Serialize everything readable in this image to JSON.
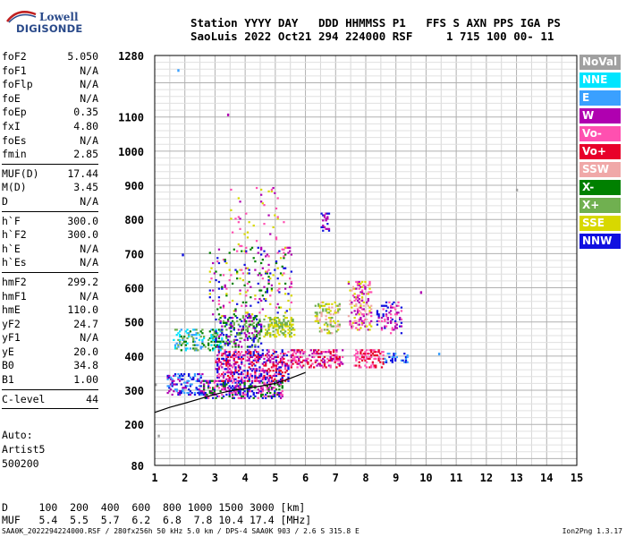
{
  "logo": {
    "line1": "Lowell",
    "line2": "DIGISONDE"
  },
  "header": {
    "labels": [
      "Station",
      "YYYY",
      "DAY",
      "DDD",
      "HHMMSS",
      "P1",
      "FFS",
      "S",
      "AXN",
      "PPS",
      "IGA",
      "PS"
    ],
    "line1": "Station YYYY DAY   DDD HHMMSS P1   FFS S AXN PPS IGA PS",
    "line2": "SaoLuis 2022 Oct21 294 224000 RSF     1 715 100 00- 11"
  },
  "params": [
    [
      {
        "name": "foF2",
        "value": "5.050"
      },
      {
        "name": "foF1",
        "value": "N/A"
      },
      {
        "name": "foFlp",
        "value": "N/A"
      },
      {
        "name": "foE",
        "value": "N/A"
      },
      {
        "name": "foEp",
        "value": "0.35"
      },
      {
        "name": "fxI",
        "value": "4.80"
      },
      {
        "name": "foEs",
        "value": "N/A"
      },
      {
        "name": "fmin",
        "value": "2.85"
      }
    ],
    [
      {
        "name": "MUF(D)",
        "value": "17.44"
      },
      {
        "name": "M(D)",
        "value": "3.45"
      },
      {
        "name": "D",
        "value": "N/A"
      }
    ],
    [
      {
        "name": "h`F",
        "value": "300.0"
      },
      {
        "name": "h`F2",
        "value": "300.0"
      },
      {
        "name": "h`E",
        "value": "N/A"
      },
      {
        "name": "h`Es",
        "value": "N/A"
      }
    ],
    [
      {
        "name": "hmF2",
        "value": "299.2"
      },
      {
        "name": "hmF1",
        "value": "N/A"
      },
      {
        "name": "hmE",
        "value": "110.0"
      },
      {
        "name": "yF2",
        "value": "24.7"
      },
      {
        "name": "yF1",
        "value": "N/A"
      },
      {
        "name": "yE",
        "value": "20.0"
      },
      {
        "name": "B0",
        "value": "34.8"
      },
      {
        "name": "B1",
        "value": "1.00"
      }
    ],
    [
      {
        "name": "C-level",
        "value": "44"
      }
    ]
  ],
  "auto": {
    "line1": "Auto:",
    "line2": "Artist5",
    "line3": "500200"
  },
  "legend": [
    {
      "label": "NoVal",
      "color": "#a0a0a0"
    },
    {
      "label": "NNE",
      "color": "#00e5ff"
    },
    {
      "label": "E",
      "color": "#3aa0ff"
    },
    {
      "label": "W",
      "color": "#b000b0"
    },
    {
      "label": "Vo-",
      "color": "#ff50b0"
    },
    {
      "label": "Vo+",
      "color": "#e8002a"
    },
    {
      "label": "SSW",
      "color": "#f0a8a8"
    },
    {
      "label": "X-",
      "color": "#008000"
    },
    {
      "label": "X+",
      "color": "#70b050"
    },
    {
      "label": "SSE",
      "color": "#d8d800"
    },
    {
      "label": "NNW",
      "color": "#1010e0"
    }
  ],
  "dmuf": {
    "d_line": "D     100  200  400  600  800 1000 1500 3000 [km]",
    "muf_line": "MUF   5.4  5.5  5.7  6.2  6.8  7.8 10.4 17.4 [MHz]"
  },
  "footer": {
    "left": "SAA0K_2022294224000.RSF / 280fx256h 50 kHz 5.0 km / DPS-4 SAA0K 903 / 2.6 S 315.8 E",
    "right": "Ion2Png 1.3.17"
  },
  "chart_data": {
    "type": "scatter",
    "x_ticks": [
      1,
      2,
      3,
      4,
      5,
      6,
      7,
      8,
      9,
      10,
      11,
      12,
      13,
      14,
      15
    ],
    "xlim": [
      1,
      15
    ],
    "y_ticks": [
      80,
      200,
      300,
      400,
      500,
      600,
      700,
      800,
      900,
      1000,
      1100,
      1280
    ],
    "ylim": [
      80,
      1280
    ],
    "grid": true,
    "trace": {
      "x": [
        1.0,
        1.5,
        2.0,
        2.5,
        3.0,
        3.5,
        4.0,
        4.5,
        5.0,
        5.5,
        6.0
      ],
      "y": [
        235,
        250,
        262,
        275,
        288,
        298,
        305,
        312,
        320,
        335,
        352
      ]
    },
    "clusters": [
      {
        "x": [
          1.4,
          2.6
        ],
        "y": [
          290,
          350
        ],
        "colors": [
          "#1010e0",
          "#b000b0",
          "#3aa0ff"
        ],
        "density": 0.7
      },
      {
        "x": [
          2.6,
          5.2
        ],
        "y": [
          280,
          330
        ],
        "colors": [
          "#b000b0",
          "#ff50b0",
          "#1010e0",
          "#008000"
        ],
        "density": 0.8
      },
      {
        "x": [
          3.0,
          5.4
        ],
        "y": [
          330,
          420
        ],
        "colors": [
          "#b000b0",
          "#ff50b0",
          "#1010e0",
          "#e8002a"
        ],
        "density": 0.75
      },
      {
        "x": [
          1.6,
          3.2
        ],
        "y": [
          420,
          480
        ],
        "colors": [
          "#008000",
          "#70b050",
          "#3aa0ff",
          "#00e5ff"
        ],
        "density": 0.55
      },
      {
        "x": [
          3.0,
          4.5
        ],
        "y": [
          430,
          520
        ],
        "colors": [
          "#008000",
          "#1010e0",
          "#b000b0",
          "#70b050"
        ],
        "density": 0.55
      },
      {
        "x": [
          4.6,
          5.6
        ],
        "y": [
          460,
          520
        ],
        "colors": [
          "#d8d800",
          "#70b050"
        ],
        "density": 0.7
      },
      {
        "x": [
          5.5,
          7.2
        ],
        "y": [
          370,
          420
        ],
        "colors": [
          "#e8002a",
          "#ff50b0",
          "#b000b0"
        ],
        "density": 0.7
      },
      {
        "x": [
          7.6,
          8.6
        ],
        "y": [
          370,
          420
        ],
        "colors": [
          "#e8002a",
          "#ff50b0"
        ],
        "density": 0.65
      },
      {
        "x": [
          8.6,
          9.4
        ],
        "y": [
          385,
          410
        ],
        "colors": [
          "#3aa0ff",
          "#1010e0"
        ],
        "density": 0.6
      },
      {
        "x": [
          6.3,
          7.1
        ],
        "y": [
          470,
          560
        ],
        "colors": [
          "#d8d800",
          "#f0a8a8",
          "#70b050"
        ],
        "density": 0.5
      },
      {
        "x": [
          7.4,
          8.2
        ],
        "y": [
          480,
          620
        ],
        "colors": [
          "#ff50b0",
          "#f0a8a8",
          "#d8d800",
          "#b000b0"
        ],
        "density": 0.5
      },
      {
        "x": [
          8.3,
          9.2
        ],
        "y": [
          470,
          560
        ],
        "colors": [
          "#b000b0",
          "#ff50b0",
          "#1010e0"
        ],
        "density": 0.35
      },
      {
        "x": [
          2.8,
          5.5
        ],
        "y": [
          520,
          720
        ],
        "colors": [
          "#b000b0",
          "#d8d800",
          "#1010e0",
          "#ff50b0",
          "#008000"
        ],
        "density": 0.15
      },
      {
        "x": [
          3.5,
          5.3
        ],
        "y": [
          720,
          900
        ],
        "colors": [
          "#b000b0",
          "#d8d800",
          "#ff50b0"
        ],
        "density": 0.05
      },
      {
        "x": [
          6.5,
          6.8
        ],
        "y": [
          770,
          820
        ],
        "colors": [
          "#b000b0",
          "#1010e0"
        ],
        "density": 0.5
      }
    ],
    "isolated_points": [
      {
        "x": 1.75,
        "y": 1240,
        "color": "#3aa0ff"
      },
      {
        "x": 1.9,
        "y": 700,
        "color": "#1010e0"
      },
      {
        "x": 3.4,
        "y": 1110,
        "color": "#b000b0"
      },
      {
        "x": 10.4,
        "y": 410,
        "color": "#3aa0ff"
      },
      {
        "x": 12.98,
        "y": 890,
        "color": "#a0a0a0"
      },
      {
        "x": 9.8,
        "y": 590,
        "color": "#b000b0"
      },
      {
        "x": 1.0,
        "y": 320,
        "color": "#a0a0a0"
      },
      {
        "x": 1.1,
        "y": 170,
        "color": "#a0a0a0"
      }
    ]
  }
}
